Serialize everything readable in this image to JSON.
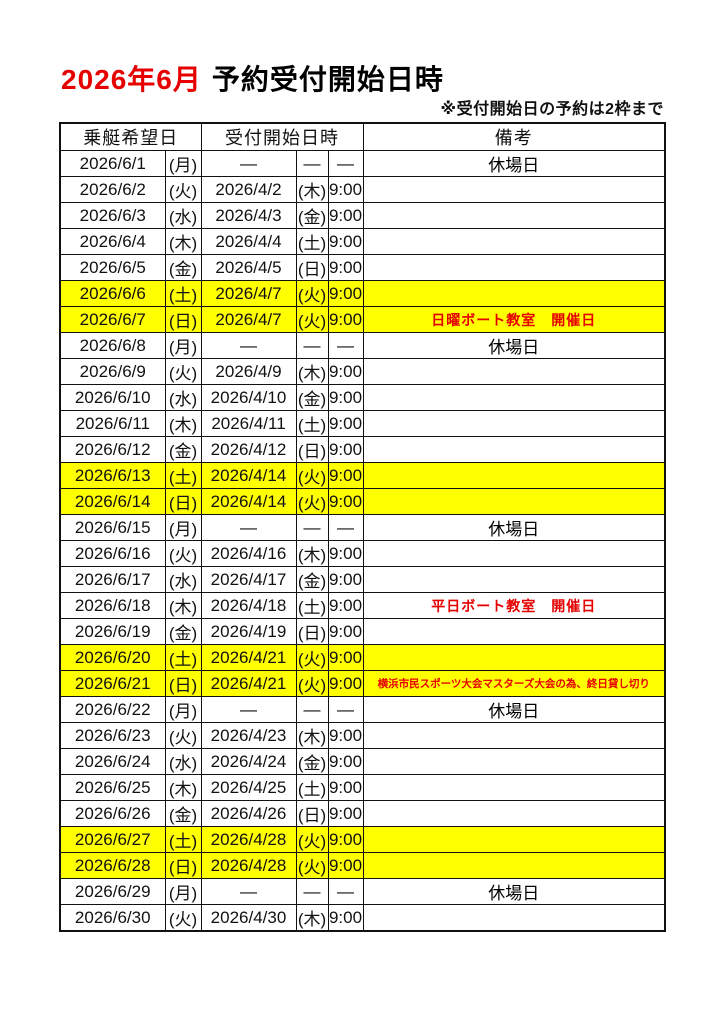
{
  "header": {
    "title_month": "2026年6月",
    "title_text": "予約受付開始日時",
    "note": "※受付開始日の予約は2枠まで"
  },
  "table": {
    "headers": {
      "desired_date": "乗艇希望日",
      "reception_start": "受付開始日時",
      "remarks": "備考"
    },
    "rows": [
      {
        "date": "2026/6/1",
        "dow": "(月)",
        "start_date": "—",
        "start_dow": "—",
        "time": "—",
        "remark": "休場日",
        "weekend": false,
        "remark_type": "closed"
      },
      {
        "date": "2026/6/2",
        "dow": "(火)",
        "start_date": "2026/4/2",
        "start_dow": "(木)",
        "time": "9:00",
        "remark": "",
        "weekend": false,
        "remark_type": "none"
      },
      {
        "date": "2026/6/3",
        "dow": "(水)",
        "start_date": "2026/4/3",
        "start_dow": "(金)",
        "time": "9:00",
        "remark": "",
        "weekend": false,
        "remark_type": "none"
      },
      {
        "date": "2026/6/4",
        "dow": "(木)",
        "start_date": "2026/4/4",
        "start_dow": "(土)",
        "time": "9:00",
        "remark": "",
        "weekend": false,
        "remark_type": "none"
      },
      {
        "date": "2026/6/5",
        "dow": "(金)",
        "start_date": "2026/4/5",
        "start_dow": "(日)",
        "time": "9:00",
        "remark": "",
        "weekend": false,
        "remark_type": "none"
      },
      {
        "date": "2026/6/6",
        "dow": "(土)",
        "start_date": "2026/4/7",
        "start_dow": "(火)",
        "time": "9:00",
        "remark": "",
        "weekend": true,
        "remark_type": "none"
      },
      {
        "date": "2026/6/7",
        "dow": "(日)",
        "start_date": "2026/4/7",
        "start_dow": "(火)",
        "time": "9:00",
        "remark": "日曜ボート教室　開催日",
        "weekend": true,
        "remark_type": "event"
      },
      {
        "date": "2026/6/8",
        "dow": "(月)",
        "start_date": "—",
        "start_dow": "—",
        "time": "—",
        "remark": "休場日",
        "weekend": false,
        "remark_type": "closed"
      },
      {
        "date": "2026/6/9",
        "dow": "(火)",
        "start_date": "2026/4/9",
        "start_dow": "(木)",
        "time": "9:00",
        "remark": "",
        "weekend": false,
        "remark_type": "none"
      },
      {
        "date": "2026/6/10",
        "dow": "(水)",
        "start_date": "2026/4/10",
        "start_dow": "(金)",
        "time": "9:00",
        "remark": "",
        "weekend": false,
        "remark_type": "none"
      },
      {
        "date": "2026/6/11",
        "dow": "(木)",
        "start_date": "2026/4/11",
        "start_dow": "(土)",
        "time": "9:00",
        "remark": "",
        "weekend": false,
        "remark_type": "none"
      },
      {
        "date": "2026/6/12",
        "dow": "(金)",
        "start_date": "2026/4/12",
        "start_dow": "(日)",
        "time": "9:00",
        "remark": "",
        "weekend": false,
        "remark_type": "none"
      },
      {
        "date": "2026/6/13",
        "dow": "(土)",
        "start_date": "2026/4/14",
        "start_dow": "(火)",
        "time": "9:00",
        "remark": "",
        "weekend": true,
        "remark_type": "none"
      },
      {
        "date": "2026/6/14",
        "dow": "(日)",
        "start_date": "2026/4/14",
        "start_dow": "(火)",
        "time": "9:00",
        "remark": "",
        "weekend": true,
        "remark_type": "none"
      },
      {
        "date": "2026/6/15",
        "dow": "(月)",
        "start_date": "—",
        "start_dow": "—",
        "time": "—",
        "remark": "休場日",
        "weekend": false,
        "remark_type": "closed"
      },
      {
        "date": "2026/6/16",
        "dow": "(火)",
        "start_date": "2026/4/16",
        "start_dow": "(木)",
        "time": "9:00",
        "remark": "",
        "weekend": false,
        "remark_type": "none"
      },
      {
        "date": "2026/6/17",
        "dow": "(水)",
        "start_date": "2026/4/17",
        "start_dow": "(金)",
        "time": "9:00",
        "remark": "",
        "weekend": false,
        "remark_type": "none"
      },
      {
        "date": "2026/6/18",
        "dow": "(木)",
        "start_date": "2026/4/18",
        "start_dow": "(土)",
        "time": "9:00",
        "remark": "平日ボート教室　開催日",
        "weekend": false,
        "remark_type": "event"
      },
      {
        "date": "2026/6/19",
        "dow": "(金)",
        "start_date": "2026/4/19",
        "start_dow": "(日)",
        "time": "9:00",
        "remark": "",
        "weekend": false,
        "remark_type": "none"
      },
      {
        "date": "2026/6/20",
        "dow": "(土)",
        "start_date": "2026/4/21",
        "start_dow": "(火)",
        "time": "9:00",
        "remark": "",
        "weekend": true,
        "remark_type": "none"
      },
      {
        "date": "2026/6/21",
        "dow": "(日)",
        "start_date": "2026/4/21",
        "start_dow": "(火)",
        "time": "9:00",
        "remark": "横浜市民スポーツ大会マスターズ大会の為、終日貸し切り",
        "weekend": true,
        "remark_type": "event_small"
      },
      {
        "date": "2026/6/22",
        "dow": "(月)",
        "start_date": "—",
        "start_dow": "—",
        "time": "—",
        "remark": "休場日",
        "weekend": false,
        "remark_type": "closed"
      },
      {
        "date": "2026/6/23",
        "dow": "(火)",
        "start_date": "2026/4/23",
        "start_dow": "(木)",
        "time": "9:00",
        "remark": "",
        "weekend": false,
        "remark_type": "none"
      },
      {
        "date": "2026/6/24",
        "dow": "(水)",
        "start_date": "2026/4/24",
        "start_dow": "(金)",
        "time": "9:00",
        "remark": "",
        "weekend": false,
        "remark_type": "none"
      },
      {
        "date": "2026/6/25",
        "dow": "(木)",
        "start_date": "2026/4/25",
        "start_dow": "(土)",
        "time": "9:00",
        "remark": "",
        "weekend": false,
        "remark_type": "none"
      },
      {
        "date": "2026/6/26",
        "dow": "(金)",
        "start_date": "2026/4/26",
        "start_dow": "(日)",
        "time": "9:00",
        "remark": "",
        "weekend": false,
        "remark_type": "none"
      },
      {
        "date": "2026/6/27",
        "dow": "(土)",
        "start_date": "2026/4/28",
        "start_dow": "(火)",
        "time": "9:00",
        "remark": "",
        "weekend": true,
        "remark_type": "none"
      },
      {
        "date": "2026/6/28",
        "dow": "(日)",
        "start_date": "2026/4/28",
        "start_dow": "(火)",
        "time": "9:00",
        "remark": "",
        "weekend": true,
        "remark_type": "none"
      },
      {
        "date": "2026/6/29",
        "dow": "(月)",
        "start_date": "—",
        "start_dow": "—",
        "time": "—",
        "remark": "休場日",
        "weekend": false,
        "remark_type": "closed"
      },
      {
        "date": "2026/6/30",
        "dow": "(火)",
        "start_date": "2026/4/30",
        "start_dow": "(木)",
        "time": "9:00",
        "remark": "",
        "weekend": false,
        "remark_type": "none"
      }
    ]
  },
  "colors": {
    "highlight_yellow": "#ffff00",
    "accent_red": "#e60000"
  }
}
